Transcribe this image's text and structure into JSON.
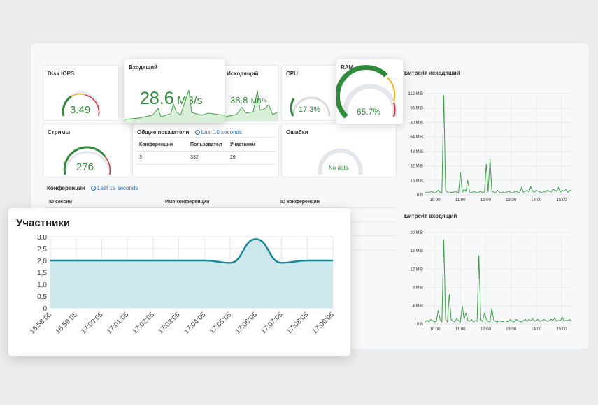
{
  "panels": {
    "disk_iops": {
      "title": "Disk IOPS",
      "value": "3.49",
      "level": 0.3
    },
    "incoming": {
      "title": "Входящий",
      "value": "28.6",
      "unit": "MB/s"
    },
    "outgoing": {
      "title": "Исходящий",
      "value": "38.8",
      "unit": "MB/s"
    },
    "cpu": {
      "title": "CPU",
      "value": "17.3%",
      "level": 0.173
    },
    "ram": {
      "title": "RAM",
      "value": "65.7%",
      "level": 0.657
    },
    "streams": {
      "title": "Стримы",
      "value": "276",
      "level": 0.72
    },
    "summary": {
      "title": "Общие показатели",
      "time_range": "Last 10 seconds",
      "columns": [
        "Конференции",
        "Пользовател",
        "Участники"
      ],
      "row": [
        "3",
        "332",
        "26"
      ]
    },
    "errors": {
      "title": "Ошибки",
      "value": "No data"
    },
    "conferences": {
      "title": "Конференции",
      "time_range": "Last 15 seconds",
      "columns": [
        "ID сессии",
        "Имя конференции",
        "ID конференции"
      ]
    }
  },
  "bitrate_out": {
    "title": "Битрейт исходящий",
    "y_ticks": [
      "112 MiB",
      "96 MiB",
      "80 MiB",
      "64 MiB",
      "48 MiB",
      "32 MiB",
      "16 MiB",
      "0 B"
    ],
    "x_ticks": [
      "10:00",
      "11:00",
      "12:00",
      "13:00",
      "14:00",
      "15:00"
    ],
    "values": [
      2,
      3,
      2,
      4,
      3,
      2,
      3,
      5,
      3,
      2,
      110,
      5,
      3,
      2,
      3,
      2,
      4,
      3,
      2,
      25,
      3,
      6,
      4,
      16,
      3,
      2,
      4,
      3,
      2,
      3,
      4,
      2,
      3,
      34,
      3,
      40,
      4,
      3,
      2,
      5,
      3,
      2,
      3,
      2,
      3,
      4,
      3,
      2,
      3,
      4,
      3,
      2,
      8,
      3,
      4,
      5,
      3,
      9,
      4,
      3,
      5,
      4,
      3,
      2,
      4,
      3,
      5,
      4,
      3,
      6,
      5,
      4,
      8,
      3,
      5,
      4,
      6,
      3,
      5,
      4
    ]
  },
  "bitrate_in": {
    "title": "Битрейт входящий",
    "y_ticks": [
      "20 MiB",
      "16 MiB",
      "12 MiB",
      "8 MiB",
      "4 MiB",
      "0 B"
    ],
    "x_ticks": [
      "10:00",
      "11:00",
      "12:00",
      "13:00",
      "14:00",
      "15:00"
    ],
    "values": [
      0.5,
      0.8,
      0.5,
      1,
      0.7,
      0.5,
      0.6,
      3,
      1,
      0.5,
      18.5,
      1,
      0.5,
      6.5,
      1,
      0.6,
      0.5,
      1.2,
      0.7,
      0.5,
      4,
      1,
      2.5,
      0.8,
      0.6,
      1,
      0.5,
      0.7,
      0.6,
      15,
      1,
      0.5,
      2.5,
      1,
      0.6,
      0.5,
      3.5,
      0.8,
      0.6,
      0.5,
      0.7,
      0.6,
      0.5,
      0.7,
      0.6,
      0.5,
      1,
      0.6,
      0.5,
      1,
      0.8,
      0.6,
      0.5,
      0.7,
      1,
      0.6,
      1,
      0.7,
      1.2,
      0.6,
      0.8,
      1,
      0.6,
      0.7,
      1,
      0.8,
      0.6,
      0.7,
      1,
      0.8,
      1.3,
      0.6,
      0.8,
      0.7,
      1.5,
      0.6,
      0.8,
      0.7,
      1,
      0.6
    ]
  },
  "participants_popup": {
    "title": "Участники",
    "chart_data": {
      "type": "area",
      "title": "Участники",
      "x": [
        "16:58:05",
        "16:59:05",
        "17:00:05",
        "17:01:05",
        "17:02:05",
        "17:03:05",
        "17:04:05",
        "17:05:05",
        "17:06:05",
        "17:07:05",
        "17:08:05",
        "17:09:05"
      ],
      "y_ticks": [
        "3,0",
        "2,5",
        "2,0",
        "1,5",
        "1,0",
        "0,5",
        "0"
      ],
      "ylim": [
        0,
        3.0
      ],
      "values": [
        2,
        2,
        2,
        2,
        2,
        2,
        2,
        1.9,
        2.9,
        1.9,
        2,
        2
      ]
    }
  }
}
